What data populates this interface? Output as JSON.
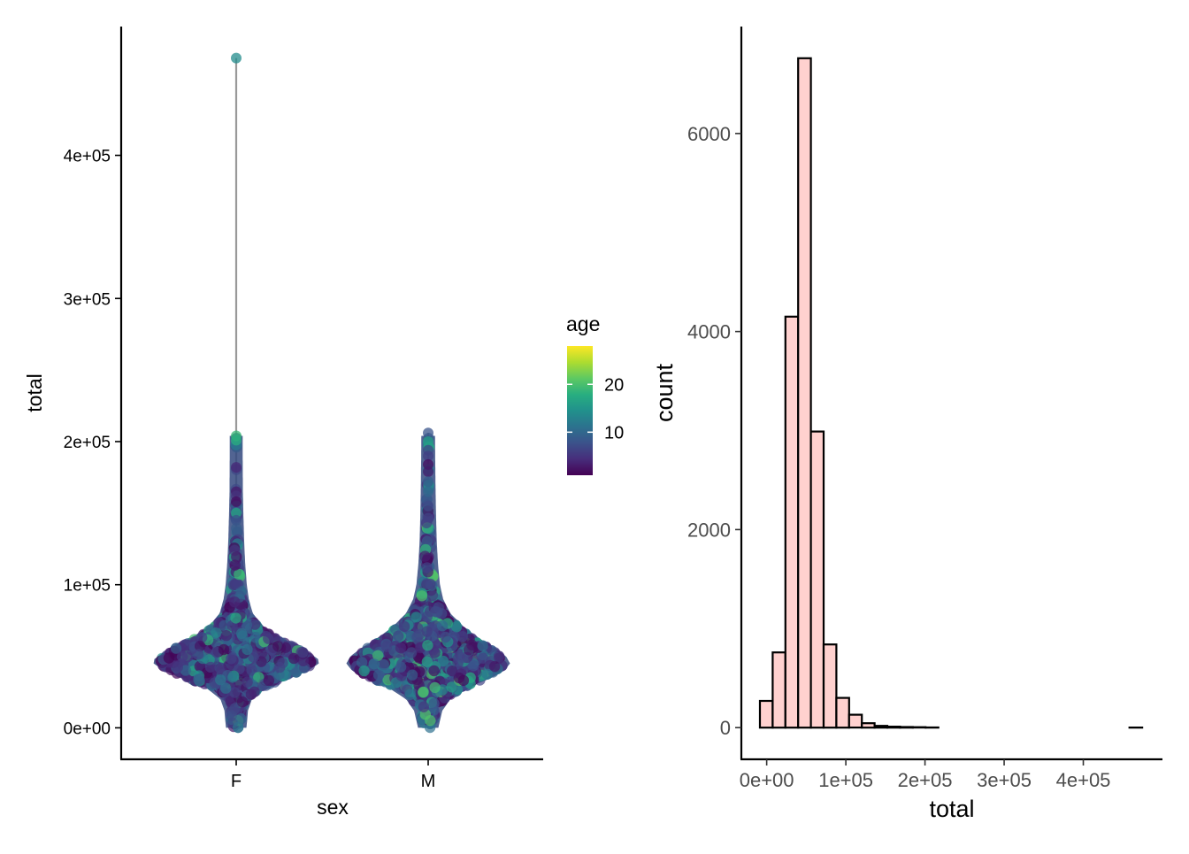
{
  "chart_data": [
    {
      "type": "violin-beeswarm",
      "xlabel": "sex",
      "ylabel": "total",
      "categories": [
        "F",
        "M"
      ],
      "y_ticks": [
        {
          "value": 0,
          "label": "0e+00"
        },
        {
          "value": 100000,
          "label": "1e+05"
        },
        {
          "value": 200000,
          "label": "2e+05"
        },
        {
          "value": 300000,
          "label": "3e+05"
        },
        {
          "value": 400000,
          "label": "4e+05"
        }
      ],
      "ylim": [
        -22000,
        490000
      ],
      "grid": false,
      "legend": {
        "title": "age",
        "type": "color-gradient",
        "palette": "viridis",
        "range": [
          1,
          28
        ],
        "ticks": [
          {
            "value": 10,
            "label": "10"
          },
          {
            "value": 20,
            "label": "20"
          }
        ],
        "placement": "right"
      },
      "distributions": [
        {
          "category": "F",
          "min": 0,
          "max": 468000,
          "density_profile": [
            [
              0,
              0.05
            ],
            [
              5000,
              0.06
            ],
            [
              12000,
              0.07
            ],
            [
              20000,
              0.12
            ],
            [
              28000,
              0.3
            ],
            [
              35000,
              0.62
            ],
            [
              40000,
              0.83
            ],
            [
              45000,
              0.96
            ],
            [
              48000,
              0.95
            ],
            [
              55000,
              0.78
            ],
            [
              62000,
              0.52
            ],
            [
              70000,
              0.28
            ],
            [
              80000,
              0.13
            ],
            [
              90000,
              0.08
            ],
            [
              100000,
              0.055
            ],
            [
              115000,
              0.035
            ],
            [
              130000,
              0.022
            ],
            [
              150000,
              0.012
            ],
            [
              165000,
              0.006
            ],
            [
              185000,
              0.004
            ],
            [
              205000,
              0.003
            ],
            [
              468000,
              0.003
            ]
          ],
          "outliers": [
            {
              "total": 468000,
              "age": 14
            },
            {
              "total": 204000,
              "age": 19
            },
            {
              "total": 201000,
              "age": 18
            },
            {
              "total": 182000,
              "age": 4
            },
            {
              "total": 165000,
              "age": 3
            },
            {
              "total": 162000,
              "age": 5
            },
            {
              "total": 158000,
              "age": 2
            },
            {
              "total": 150000,
              "age": 17
            },
            {
              "total": 145000,
              "age": 8
            }
          ]
        },
        {
          "category": "M",
          "min": 0,
          "max": 206000,
          "density_profile": [
            [
              0,
              0.05
            ],
            [
              5000,
              0.07
            ],
            [
              12000,
              0.1
            ],
            [
              20000,
              0.2
            ],
            [
              28000,
              0.42
            ],
            [
              35000,
              0.72
            ],
            [
              40000,
              0.88
            ],
            [
              45000,
              0.95
            ],
            [
              50000,
              0.9
            ],
            [
              55000,
              0.78
            ],
            [
              62000,
              0.58
            ],
            [
              70000,
              0.38
            ],
            [
              80000,
              0.2
            ],
            [
              90000,
              0.11
            ],
            [
              100000,
              0.07
            ],
            [
              115000,
              0.045
            ],
            [
              130000,
              0.03
            ],
            [
              150000,
              0.02
            ],
            [
              170000,
              0.014
            ],
            [
              190000,
              0.01
            ],
            [
              206000,
              0.008
            ]
          ],
          "outliers": [
            {
              "total": 206000,
              "age": 8
            },
            {
              "total": 200000,
              "age": 16
            },
            {
              "total": 194000,
              "age": 7
            },
            {
              "total": 190000,
              "age": 6
            },
            {
              "total": 184000,
              "age": 2
            },
            {
              "total": 179000,
              "age": 3
            },
            {
              "total": 172000,
              "age": 9
            },
            {
              "total": 165000,
              "age": 10
            },
            {
              "total": 155000,
              "age": 7
            }
          ]
        }
      ]
    },
    {
      "type": "bar",
      "subtype": "histogram",
      "xlabel": "total",
      "ylabel": "count",
      "bin_width": 16100,
      "fill_color": "#ffd1cf",
      "edge_color": "#000000",
      "bins": [
        {
          "center": -500,
          "count": 270
        },
        {
          "center": 15600,
          "count": 760
        },
        {
          "center": 31700,
          "count": 4150
        },
        {
          "center": 47800,
          "count": 6760
        },
        {
          "center": 63900,
          "count": 2990
        },
        {
          "center": 80000,
          "count": 840
        },
        {
          "center": 96100,
          "count": 300
        },
        {
          "center": 112200,
          "count": 130
        },
        {
          "center": 128300,
          "count": 45
        },
        {
          "center": 144400,
          "count": 18
        },
        {
          "center": 160500,
          "count": 10
        },
        {
          "center": 176600,
          "count": 6
        },
        {
          "center": 192700,
          "count": 4
        },
        {
          "center": 208800,
          "count": 2
        },
        {
          "center": 224900,
          "count": 0
        },
        {
          "center": 241000,
          "count": 0
        },
        {
          "center": 257100,
          "count": 0
        },
        {
          "center": 273200,
          "count": 0
        },
        {
          "center": 289300,
          "count": 0
        },
        {
          "center": 305400,
          "count": 0
        },
        {
          "center": 321500,
          "count": 0
        },
        {
          "center": 337600,
          "count": 0
        },
        {
          "center": 353700,
          "count": 0
        },
        {
          "center": 369800,
          "count": 0
        },
        {
          "center": 385900,
          "count": 0
        },
        {
          "center": 402000,
          "count": 0
        },
        {
          "center": 418100,
          "count": 0
        },
        {
          "center": 434200,
          "count": 0
        },
        {
          "center": 450300,
          "count": 0
        },
        {
          "center": 466400,
          "count": 1
        }
      ],
      "x_ticks": [
        {
          "value": 0,
          "label": "0e+00"
        },
        {
          "value": 100000,
          "label": "1e+05"
        },
        {
          "value": 200000,
          "label": "2e+05"
        },
        {
          "value": 300000,
          "label": "3e+05"
        },
        {
          "value": 400000,
          "label": "4e+05"
        }
      ],
      "y_ticks": [
        {
          "value": 0,
          "label": "0"
        },
        {
          "value": 2000,
          "label": "2000"
        },
        {
          "value": 4000,
          "label": "4000"
        },
        {
          "value": 6000,
          "label": "6000"
        }
      ],
      "xlim": [
        -32000,
        500000
      ],
      "ylim": [
        -320,
        7080
      ],
      "grid": false
    }
  ]
}
